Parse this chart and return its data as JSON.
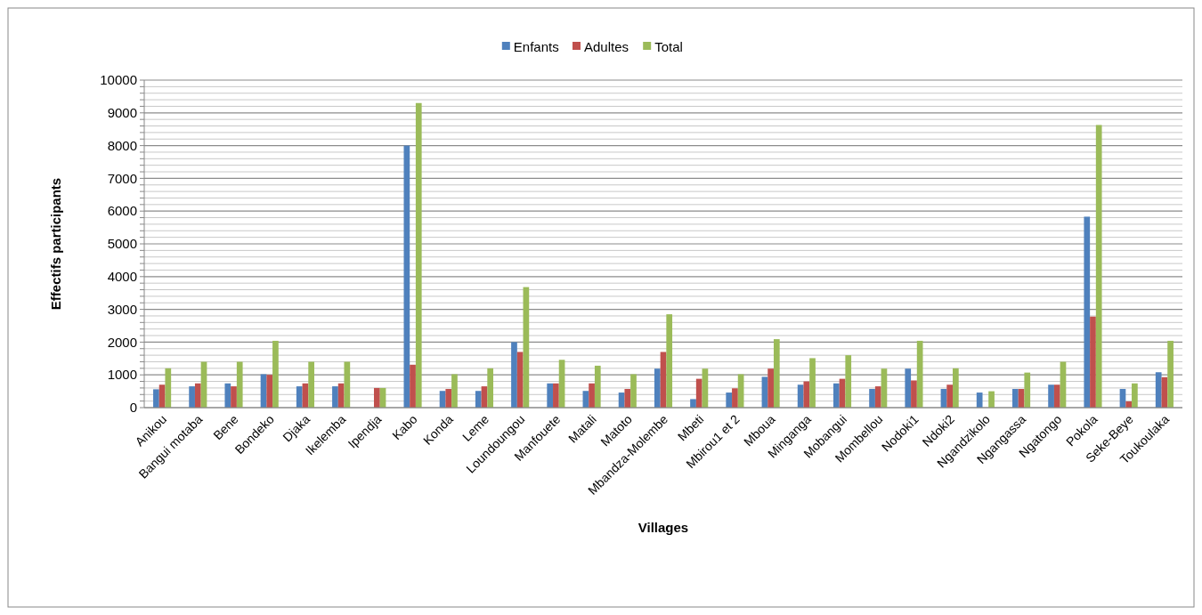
{
  "chart_data": {
    "type": "bar",
    "xlabel": "Villages",
    "ylabel": "Effectifs participants",
    "categories": [
      "Anikou",
      "Bangui motaba",
      "Bene",
      "Bondeko",
      "Djaka",
      "Ikelemba",
      "Ipendja",
      "Kabo",
      "Konda",
      "Leme",
      "Loundoungou",
      "Manfouete",
      "Matali",
      "Matoto",
      "Mbandza-Molembe",
      "Mbeti",
      "Mbirou1 et 2",
      "Mboua",
      "Minganga",
      "Mobangui",
      "Mombellou",
      "Nodoki1",
      "Ndoki2",
      "Ngandzikolo",
      "Ngangassa",
      "Ngatongo",
      "Pokola",
      "Seke-Beye",
      "Toukoulaka"
    ],
    "series": [
      {
        "name": "Enfants",
        "color": "#4f81bd",
        "values": [
          560,
          650,
          740,
          1020,
          650,
          650,
          0,
          8000,
          510,
          510,
          2000,
          740,
          510,
          460,
          1190,
          260,
          460,
          940,
          700,
          740,
          570,
          1190,
          570,
          460,
          570,
          700,
          5830,
          570,
          1080
        ]
      },
      {
        "name": "Adultes",
        "color": "#c0504d",
        "values": [
          700,
          740,
          650,
          1000,
          740,
          740,
          600,
          1310,
          570,
          650,
          1700,
          740,
          740,
          570,
          1700,
          880,
          590,
          1190,
          800,
          880,
          650,
          830,
          700,
          0,
          570,
          700,
          2780,
          190,
          930
        ]
      },
      {
        "name": "Total",
        "color": "#9bbb59",
        "values": [
          1200,
          1400,
          1400,
          2040,
          1400,
          1400,
          600,
          9300,
          1020,
          1200,
          3680,
          1460,
          1280,
          1020,
          2850,
          1190,
          1020,
          2090,
          1510,
          1600,
          1190,
          2040,
          1200,
          500,
          1070,
          1400,
          8630,
          740,
          2040
        ]
      }
    ],
    "ylim": [
      0,
      10000
    ],
    "yticks": [
      0,
      {
        "value": 200,
        "label": null
      },
      {
        "value": 400,
        "label": null
      },
      {
        "value": 600,
        "label": null
      },
      {
        "value": 800,
        "label": null
      },
      1000,
      {
        "value": 1200,
        "label": null
      },
      {
        "value": 1400,
        "label": null
      },
      {
        "value": 1600,
        "label": null
      },
      {
        "value": 1800,
        "label": null
      },
      2000,
      {
        "value": 2200,
        "label": null
      },
      {
        "value": 2400,
        "label": null
      },
      {
        "value": 2600,
        "label": null
      },
      {
        "value": 2800,
        "label": null
      },
      3000,
      {
        "value": 3200,
        "label": null
      },
      {
        "value": 3400,
        "label": null
      },
      {
        "value": 3600,
        "label": null
      },
      {
        "value": 3800,
        "label": null
      },
      4000,
      {
        "value": 4200,
        "label": null
      },
      {
        "value": 4400,
        "label": null
      },
      {
        "value": 4600,
        "label": null
      },
      {
        "value": 4800,
        "label": null
      },
      5000,
      {
        "value": 5200,
        "label": null
      },
      {
        "value": 5400,
        "label": null
      },
      {
        "value": 5600,
        "label": null
      },
      {
        "value": 5800,
        "label": null
      },
      6000,
      {
        "value": 6200,
        "label": null
      },
      {
        "value": 6400,
        "label": null
      },
      {
        "value": 6600,
        "label": null
      },
      {
        "value": 6800,
        "label": null
      },
      7000,
      {
        "value": 7200,
        "label": null
      },
      {
        "value": 7400,
        "label": null
      },
      {
        "value": 7600,
        "label": null
      },
      {
        "value": 7800,
        "label": null
      },
      8000,
      {
        "value": 8200,
        "label": null
      },
      {
        "value": 8400,
        "label": null
      },
      {
        "value": 8600,
        "label": null
      },
      {
        "value": 8800,
        "label": null
      },
      9000,
      {
        "value": 9200,
        "label": null
      },
      {
        "value": 9400,
        "label": null
      },
      {
        "value": 9600,
        "label": null
      },
      {
        "value": 9800,
        "label": null
      },
      10000
    ],
    "grid": "y",
    "legend": "top"
  }
}
